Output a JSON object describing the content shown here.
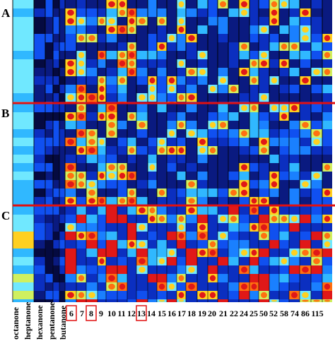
{
  "panels": [
    "A",
    "B",
    "C"
  ],
  "compounds": [
    "octanone",
    "heptanone",
    "hexanone",
    "pentanone",
    "butanone"
  ],
  "columns": [
    "6",
    "7",
    "8",
    "9",
    "10",
    "11",
    "12",
    "13",
    "14",
    "15",
    "16",
    "17",
    "18",
    "19",
    "20",
    "21",
    "22",
    "24",
    "25",
    "50",
    "52",
    "58",
    "74",
    "86",
    "115"
  ]
}
